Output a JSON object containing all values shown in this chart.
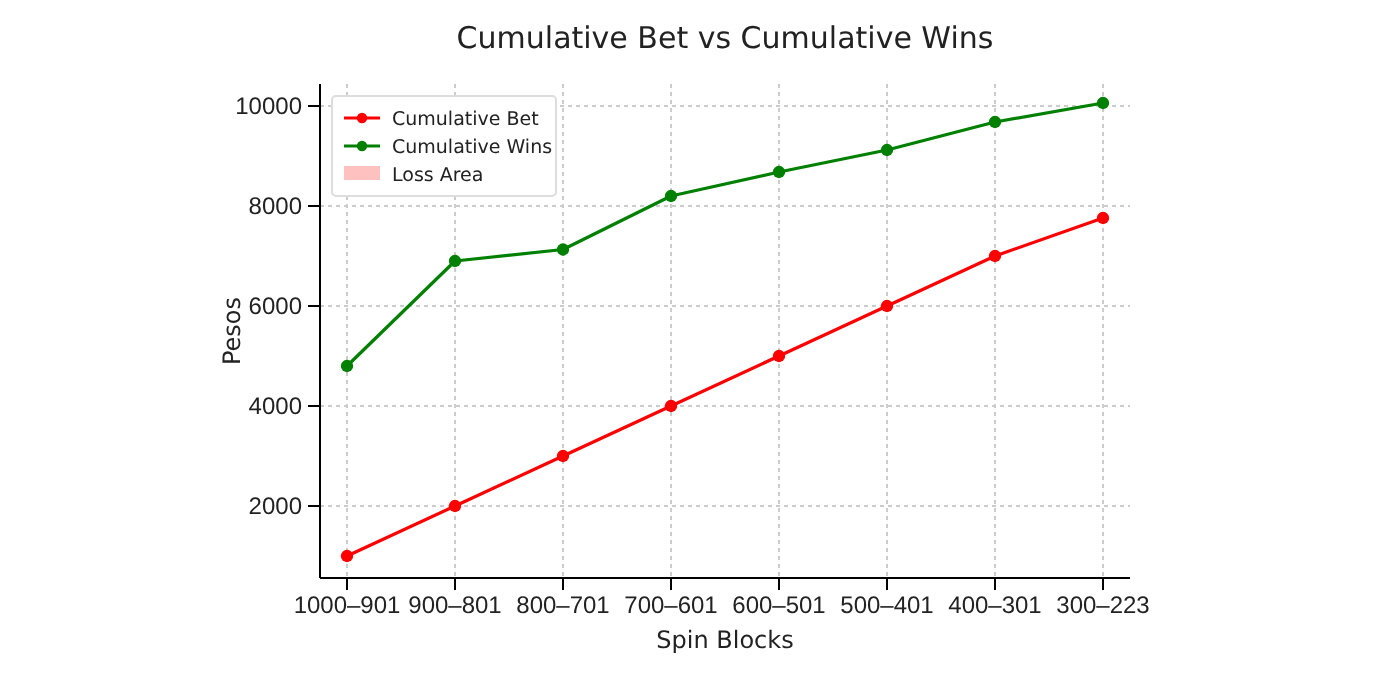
{
  "chart_data": {
    "type": "line",
    "title": "Cumulative Bet vs Cumulative Wins",
    "xlabel": "Spin Blocks",
    "ylabel": "Pesos",
    "categories": [
      "1000–901",
      "900–801",
      "800–701",
      "700–601",
      "600–501",
      "500–401",
      "400–301",
      "300–223"
    ],
    "series": [
      {
        "name": "Cumulative Bet",
        "color": "#ff0000",
        "values": [
          1000,
          2000,
          3000,
          4000,
          5000,
          6000,
          7000,
          7760
        ]
      },
      {
        "name": "Cumulative Wins",
        "color": "#008000",
        "values": [
          4800,
          6900,
          7130,
          8200,
          8680,
          9120,
          9680,
          10060
        ]
      },
      {
        "name": "Loss Area",
        "type": "area",
        "color": "#ffc0c0",
        "values": [
          null,
          null,
          null,
          null,
          null,
          null,
          null,
          null
        ]
      }
    ],
    "ylim": [
      560,
      10440
    ],
    "yticks": [
      2000,
      4000,
      6000,
      8000,
      10000
    ],
    "grid": true,
    "legend": "top left",
    "marker": "circle",
    "line_style": "solid"
  }
}
